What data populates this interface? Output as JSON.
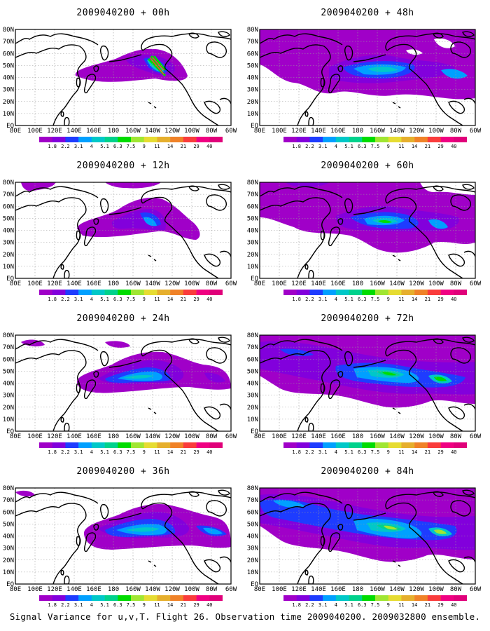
{
  "panels": [
    {
      "title": "2009040200 + 00h"
    },
    {
      "title": "2009040200 + 48h"
    },
    {
      "title": "2009040200 + 12h"
    },
    {
      "title": "2009040200 + 60h"
    },
    {
      "title": "2009040200 + 24h"
    },
    {
      "title": "2009040200 + 72h"
    },
    {
      "title": "2009040200 + 36h"
    },
    {
      "title": "2009040200 + 84h"
    }
  ],
  "lat_labels": [
    "80N",
    "70N",
    "60N",
    "50N",
    "40N",
    "30N",
    "20N",
    "10N",
    "EQ"
  ],
  "lon_labels": [
    "80E",
    "100E",
    "120E",
    "140E",
    "160E",
    "180",
    "160W",
    "140W",
    "120W",
    "100W",
    "80W",
    "60W"
  ],
  "colorbar": {
    "labels": [
      "1.8",
      "2.2",
      "3.1",
      "4",
      "5.1",
      "6.3",
      "7.5",
      "9",
      "11",
      "14",
      "21",
      "29",
      "40"
    ],
    "colors": [
      "#a000c8",
      "#8200dc",
      "#1e3cff",
      "#00a0ff",
      "#00c8c8",
      "#00d28c",
      "#00dc00",
      "#a0e632",
      "#e6dc32",
      "#e6af2d",
      "#f08228",
      "#fa3c3c",
      "#f00082"
    ]
  },
  "caption": "Signal Variance for u,v,T. Flight 26. Observation time 2009040200. 2009032800 ensemble."
}
